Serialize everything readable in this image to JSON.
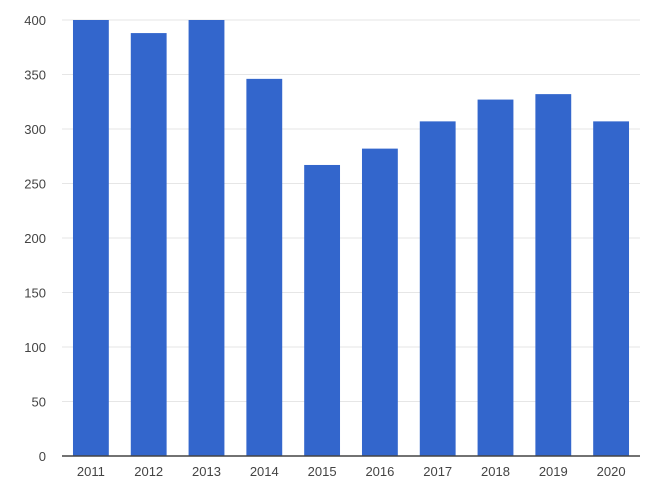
{
  "chart_data": {
    "type": "bar",
    "title": "",
    "xlabel": "",
    "ylabel": "",
    "categories": [
      "2011",
      "2012",
      "2013",
      "2014",
      "2015",
      "2016",
      "2017",
      "2018",
      "2019",
      "2020"
    ],
    "values": [
      400,
      388,
      400,
      346,
      267,
      282,
      307,
      327,
      332,
      307
    ],
    "ylim": [
      0,
      400
    ],
    "yticks": [
      "0",
      "50",
      "100",
      "150",
      "200",
      "250",
      "300",
      "350",
      "400"
    ],
    "grid": true,
    "legend": "none",
    "bar_color": "#3366cc",
    "grid_color": "#e6e6e6",
    "axis_color": "#444444"
  }
}
